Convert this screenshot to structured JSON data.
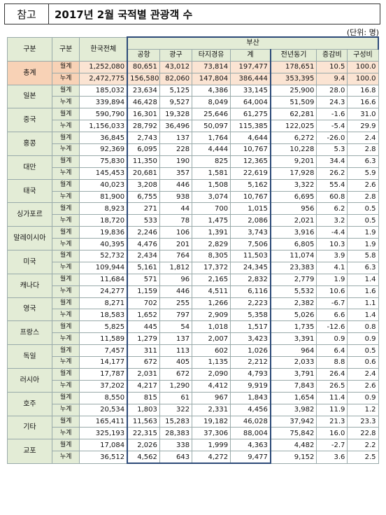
{
  "title": {
    "tag": "참고",
    "text": "2017년 2월 국적별 관광객 수"
  },
  "unit": "(단위: 명)",
  "headers": {
    "gubun1": "구분",
    "gubun2": "구분",
    "national": "한국전체",
    "busan": "부산",
    "airport": "공항",
    "seaport": "광구",
    "other_city": "타지경유",
    "subtotal": "계",
    "prev_year": "전년동기",
    "growth": "증감비",
    "share": "구성비"
  },
  "labels": {
    "month": "월계",
    "cumulative": "누계"
  },
  "rows": [
    {
      "country": "총계",
      "month": [
        "1,252,080",
        "80,651",
        "43,012",
        "73,814",
        "197,477",
        "178,651",
        "10.5",
        "100.0"
      ],
      "cum": [
        "2,472,775",
        "156,580",
        "82,060",
        "147,804",
        "386,444",
        "353,395",
        "9.4",
        "100.0"
      ]
    },
    {
      "country": "일본",
      "month": [
        "185,032",
        "23,634",
        "5,125",
        "4,386",
        "33,145",
        "25,900",
        "28.0",
        "16.8"
      ],
      "cum": [
        "339,894",
        "46,428",
        "9,527",
        "8,049",
        "64,004",
        "51,509",
        "24.3",
        "16.6"
      ]
    },
    {
      "country": "중국",
      "month": [
        "590,790",
        "16,301",
        "19,328",
        "25,646",
        "61,275",
        "62,281",
        "-1.6",
        "31.0"
      ],
      "cum": [
        "1,156,033",
        "28,792",
        "36,496",
        "50,097",
        "115,385",
        "122,025",
        "-5.4",
        "29.9"
      ]
    },
    {
      "country": "홍콩",
      "month": [
        "36,845",
        "2,743",
        "137",
        "1,764",
        "4,644",
        "6,272",
        "-26.0",
        "2.4"
      ],
      "cum": [
        "92,369",
        "6,095",
        "228",
        "4,444",
        "10,767",
        "10,228",
        "5.3",
        "2.8"
      ]
    },
    {
      "country": "대만",
      "month": [
        "75,830",
        "11,350",
        "190",
        "825",
        "12,365",
        "9,201",
        "34.4",
        "6.3"
      ],
      "cum": [
        "145,453",
        "20,681",
        "357",
        "1,581",
        "22,619",
        "17,928",
        "26.2",
        "5.9"
      ]
    },
    {
      "country": "태국",
      "month": [
        "40,023",
        "3,208",
        "446",
        "1,508",
        "5,162",
        "3,322",
        "55.4",
        "2.6"
      ],
      "cum": [
        "81,900",
        "6,755",
        "938",
        "3,074",
        "10,767",
        "6,695",
        "60.8",
        "2.8"
      ]
    },
    {
      "country": "싱가포르",
      "month": [
        "8,923",
        "271",
        "44",
        "700",
        "1,015",
        "956",
        "6.2",
        "0.5"
      ],
      "cum": [
        "18,720",
        "533",
        "78",
        "1,475",
        "2,086",
        "2,021",
        "3.2",
        "0.5"
      ]
    },
    {
      "country": "말레이시아",
      "month": [
        "19,836",
        "2,246",
        "106",
        "1,391",
        "3,743",
        "3,916",
        "-4.4",
        "1.9"
      ],
      "cum": [
        "40,395",
        "4,476",
        "201",
        "2,829",
        "7,506",
        "6,805",
        "10.3",
        "1.9"
      ]
    },
    {
      "country": "미국",
      "month": [
        "52,732",
        "2,434",
        "764",
        "8,305",
        "11,503",
        "11,074",
        "3.9",
        "5.8"
      ],
      "cum": [
        "109,944",
        "5,161",
        "1,812",
        "17,372",
        "24,345",
        "23,383",
        "4.1",
        "6.3"
      ]
    },
    {
      "country": "캐나다",
      "month": [
        "11,684",
        "571",
        "96",
        "2,165",
        "2,832",
        "2,779",
        "1.9",
        "1.4"
      ],
      "cum": [
        "24,277",
        "1,159",
        "446",
        "4,511",
        "6,116",
        "5,532",
        "10.6",
        "1.6"
      ]
    },
    {
      "country": "영국",
      "month": [
        "8,271",
        "702",
        "255",
        "1,266",
        "2,223",
        "2,382",
        "-6.7",
        "1.1"
      ],
      "cum": [
        "18,583",
        "1,652",
        "797",
        "2,909",
        "5,358",
        "5,026",
        "6.6",
        "1.4"
      ]
    },
    {
      "country": "프랑스",
      "month": [
        "5,825",
        "445",
        "54",
        "1,018",
        "1,517",
        "1,735",
        "-12.6",
        "0.8"
      ],
      "cum": [
        "11,589",
        "1,279",
        "137",
        "2,007",
        "3,423",
        "3,391",
        "0.9",
        "0.9"
      ]
    },
    {
      "country": "독일",
      "month": [
        "7,457",
        "311",
        "113",
        "602",
        "1,026",
        "964",
        "6.4",
        "0.5"
      ],
      "cum": [
        "14,177",
        "672",
        "405",
        "1,135",
        "2,212",
        "2,033",
        "8.8",
        "0.6"
      ]
    },
    {
      "country": "러시아",
      "month": [
        "17,787",
        "2,031",
        "672",
        "2,090",
        "4,793",
        "3,791",
        "26.4",
        "2.4"
      ],
      "cum": [
        "37,202",
        "4,217",
        "1,290",
        "4,412",
        "9,919",
        "7,843",
        "26.5",
        "2.6"
      ]
    },
    {
      "country": "호주",
      "month": [
        "8,550",
        "815",
        "61",
        "967",
        "1,843",
        "1,654",
        "11.4",
        "0.9"
      ],
      "cum": [
        "20,534",
        "1,803",
        "322",
        "2,331",
        "4,456",
        "3,982",
        "11.9",
        "1.2"
      ]
    },
    {
      "country": "기타",
      "month": [
        "165,411",
        "11,563",
        "15,283",
        "19,182",
        "46,028",
        "37,942",
        "21.3",
        "23.3"
      ],
      "cum": [
        "325,193",
        "22,315",
        "28,383",
        "37,306",
        "88,004",
        "75,842",
        "16.0",
        "22.8"
      ]
    },
    {
      "country": "교포",
      "month": [
        "17,084",
        "2,026",
        "338",
        "1,999",
        "4,363",
        "4,482",
        "-2.7",
        "2.2"
      ],
      "cum": [
        "36,512",
        "4,562",
        "643",
        "4,272",
        "9,477",
        "9,152",
        "3.6",
        "2.5"
      ]
    }
  ]
}
